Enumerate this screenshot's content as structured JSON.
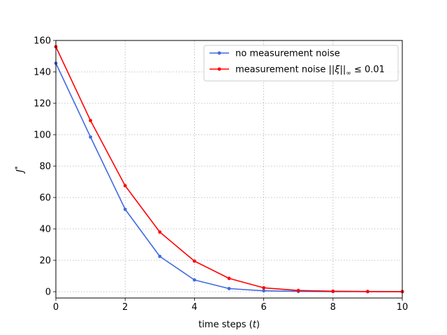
{
  "chart_data": {
    "type": "line",
    "title": "",
    "xlabel_prefix": "time steps (",
    "xlabel_var": "t",
    "xlabel_suffix": ")",
    "ylabel": "J*",
    "xlim": [
      0,
      10
    ],
    "ylim": [
      -4,
      160
    ],
    "xticks": [
      0,
      2,
      4,
      6,
      8,
      10
    ],
    "yticks": [
      0,
      20,
      40,
      60,
      80,
      100,
      120,
      140,
      160
    ],
    "grid": true,
    "legend_position": "top-right",
    "x": [
      0,
      1,
      2,
      3,
      4,
      5,
      6,
      7,
      8,
      9,
      10
    ],
    "series": [
      {
        "name": "no measurement noise",
        "color": "#4169e1",
        "values": [
          145.5,
          98.5,
          52.5,
          22.5,
          7.5,
          2.0,
          0.6,
          0.2,
          0.1,
          0.05,
          0.02
        ]
      },
      {
        "name": "measurement noise ||ξ||∞ ≤ 0.01",
        "name_text": "measurement noise ",
        "name_math": "||ξ||",
        "name_sub": "∞",
        "name_tail": " ≤ 0.01",
        "color": "#ff0000",
        "values": [
          156.0,
          109.0,
          67.5,
          38.0,
          19.5,
          8.5,
          2.5,
          0.8,
          0.3,
          0.15,
          0.1
        ]
      }
    ]
  }
}
